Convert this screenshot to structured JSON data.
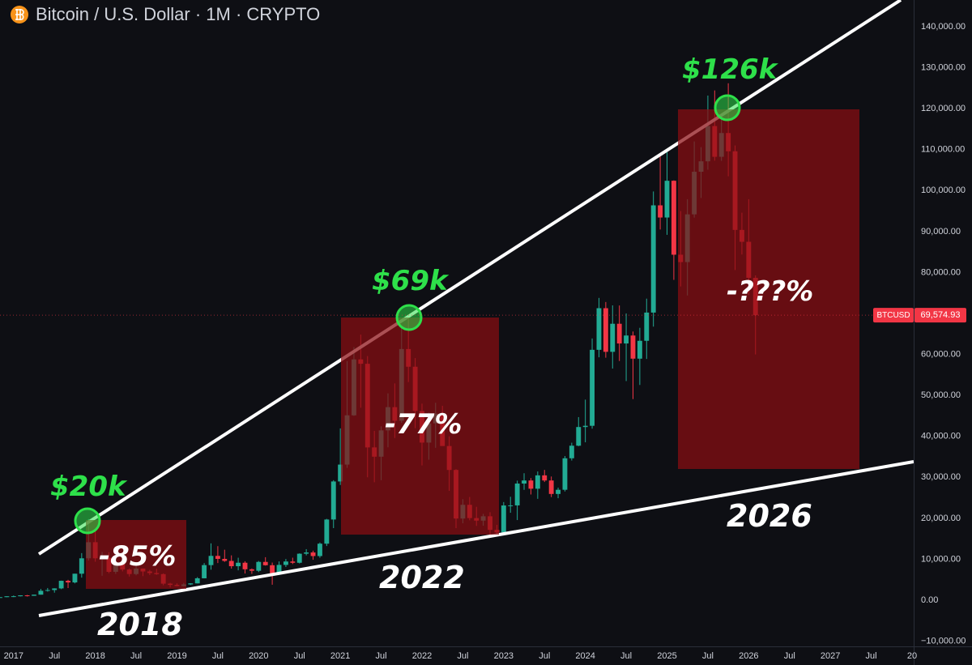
{
  "chart_data": {
    "type": "candlestick",
    "title": "Bitcoin / U.S. Dollar · 1M · CRYPTO",
    "symbol": "BTCUSD",
    "last_price_label": "69,574.93",
    "up_color": "#22ab94",
    "down_color": "#f23645",
    "x": [
      "2016-11",
      "2016-12",
      "2017-01",
      "2017-02",
      "2017-03",
      "2017-04",
      "2017-05",
      "2017-06",
      "2017-07",
      "2017-08",
      "2017-09",
      "2017-10",
      "2017-11",
      "2017-12",
      "2018-01",
      "2018-02",
      "2018-03",
      "2018-04",
      "2018-05",
      "2018-06",
      "2018-07",
      "2018-08",
      "2018-09",
      "2018-10",
      "2018-11",
      "2018-12",
      "2019-01",
      "2019-02",
      "2019-03",
      "2019-04",
      "2019-05",
      "2019-06",
      "2019-07",
      "2019-08",
      "2019-09",
      "2019-10",
      "2019-11",
      "2019-12",
      "2020-01",
      "2020-02",
      "2020-03",
      "2020-04",
      "2020-05",
      "2020-06",
      "2020-07",
      "2020-08",
      "2020-09",
      "2020-10",
      "2020-11",
      "2020-12",
      "2021-01",
      "2021-02",
      "2021-03",
      "2021-04",
      "2021-05",
      "2021-06",
      "2021-07",
      "2021-08",
      "2021-09",
      "2021-10",
      "2021-11",
      "2021-12",
      "2022-01",
      "2022-02",
      "2022-03",
      "2022-04",
      "2022-05",
      "2022-06",
      "2022-07",
      "2022-08",
      "2022-09",
      "2022-10",
      "2022-11",
      "2022-12",
      "2023-01",
      "2023-02",
      "2023-03",
      "2023-04",
      "2023-05",
      "2023-06",
      "2023-07",
      "2023-08",
      "2023-09",
      "2023-10",
      "2023-11",
      "2023-12",
      "2024-01",
      "2024-02",
      "2024-03",
      "2024-04",
      "2024-05",
      "2024-06",
      "2024-07",
      "2024-08",
      "2024-09",
      "2024-10",
      "2024-11",
      "2024-12",
      "2025-01",
      "2025-02",
      "2025-03",
      "2025-04",
      "2025-05",
      "2025-06",
      "2025-07",
      "2025-08",
      "2025-09",
      "2025-10",
      "2025-11",
      "2025-12",
      "2026-01",
      "2026-02"
    ],
    "open": [
      700,
      745,
      963,
      970,
      1190,
      1080,
      1350,
      2300,
      2480,
      2880,
      4740,
      4340,
      6470,
      10230,
      14160,
      10220,
      10330,
      6930,
      9240,
      7490,
      6390,
      7730,
      7020,
      6630,
      6370,
      4040,
      3740,
      3460,
      3850,
      4110,
      5350,
      8570,
      10820,
      10090,
      9590,
      8300,
      9150,
      7550,
      7190,
      9350,
      8540,
      6410,
      8620,
      9450,
      9140,
      11350,
      11660,
      10780,
      13800,
      19700,
      28990,
      33110,
      45140,
      58790,
      57720,
      37300,
      35040,
      41460,
      47130,
      43820,
      61320,
      57000,
      46200,
      38480,
      43190,
      45540,
      37640,
      31800,
      19940,
      23290,
      20050,
      19430,
      20490,
      17170,
      16540,
      23130,
      23150,
      28480,
      29230,
      27220,
      30480,
      29230,
      25940,
      26960,
      34650,
      37720,
      42280,
      42580,
      61130,
      71290,
      60640,
      67490,
      62680,
      64620,
      58970,
      63330,
      70220,
      96400,
      93430,
      102400,
      84350,
      82550,
      94200,
      104600,
      107150,
      115760,
      108250,
      114050,
      109600,
      90400,
      87500,
      78700
    ],
    "high": [
      750,
      980,
      1150,
      1200,
      1290,
      1350,
      2760,
      2980,
      2920,
      4780,
      4980,
      6470,
      11500,
      19800,
      17250,
      11790,
      11700,
      9760,
      9990,
      7760,
      8500,
      7760,
      7410,
      7680,
      6550,
      4240,
      4110,
      4210,
      4150,
      5640,
      9070,
      13880,
      13200,
      12330,
      10950,
      10370,
      9510,
      7740,
      9580,
      10500,
      9190,
      9470,
      10070,
      10380,
      11440,
      12470,
      12090,
      14100,
      19860,
      29300,
      41950,
      58350,
      61790,
      64850,
      59600,
      41330,
      42450,
      50500,
      52920,
      67000,
      69000,
      59100,
      47990,
      45800,
      48200,
      47450,
      40000,
      31990,
      24670,
      25200,
      22800,
      21080,
      21480,
      18400,
      23960,
      25250,
      29190,
      31000,
      29820,
      31430,
      31810,
      30200,
      27480,
      35200,
      38450,
      44700,
      48970,
      63900,
      73800,
      72800,
      71980,
      71950,
      70020,
      65600,
      66500,
      73620,
      99800,
      108300,
      109600,
      102500,
      95000,
      97900,
      112000,
      110600,
      123200,
      124450,
      117900,
      126200,
      111000,
      94600,
      97900,
      79300
    ],
    "low": [
      690,
      745,
      750,
      920,
      890,
      1060,
      1350,
      2100,
      1840,
      2700,
      2970,
      4110,
      5510,
      9700,
      9400,
      5970,
      6600,
      6430,
      7040,
      5780,
      6070,
      5880,
      6140,
      6200,
      3650,
      3120,
      3400,
      3390,
      3720,
      4100,
      5330,
      7450,
      9070,
      9360,
      7710,
      7300,
      6520,
      6430,
      6870,
      8440,
      3780,
      6150,
      8120,
      8830,
      8970,
      10950,
      9880,
      10370,
      13230,
      17600,
      28130,
      32300,
      45000,
      47000,
      30000,
      28800,
      29300,
      37330,
      39600,
      43300,
      53260,
      42000,
      32900,
      34300,
      37200,
      37700,
      26700,
      17600,
      18780,
      19520,
      18150,
      18190,
      15480,
      16260,
      16500,
      21350,
      19570,
      26940,
      25810,
      24750,
      28860,
      25170,
      24900,
      26550,
      34100,
      37600,
      38550,
      41880,
      59300,
      59200,
      56550,
      58400,
      53500,
      49100,
      52550,
      58900,
      66800,
      90500,
      89200,
      78200,
      76600,
      74400,
      93400,
      98200,
      105100,
      107300,
      107250,
      103500,
      80600,
      84400,
      74500,
      60000
    ],
    "close": [
      745,
      963,
      970,
      1190,
      1080,
      1350,
      2300,
      2480,
      2880,
      4740,
      4340,
      6470,
      10230,
      14160,
      10220,
      10330,
      6930,
      9240,
      7490,
      6390,
      7730,
      7020,
      6630,
      6370,
      4040,
      3740,
      3460,
      3850,
      4110,
      5350,
      8570,
      10820,
      10090,
      9590,
      8300,
      9150,
      7550,
      7190,
      9350,
      8540,
      6410,
      8620,
      9450,
      9140,
      11350,
      11660,
      10780,
      13800,
      19700,
      28990,
      33110,
      45140,
      58790,
      57720,
      37300,
      35040,
      41460,
      47130,
      43820,
      61320,
      57000,
      46200,
      38480,
      43190,
      45540,
      37640,
      31800,
      19940,
      23290,
      20050,
      19430,
      20490,
      17170,
      16540,
      23130,
      23150,
      28480,
      29230,
      27220,
      30480,
      29230,
      25940,
      26960,
      34650,
      37720,
      42280,
      42580,
      61130,
      71290,
      60640,
      67490,
      62680,
      64620,
      58970,
      63330,
      70220,
      96400,
      93430,
      102400,
      84350,
      82550,
      94200,
      104600,
      107150,
      115760,
      108250,
      114050,
      109600,
      90400,
      87500,
      78700,
      69574.93
    ],
    "xlim": [
      "2016-11",
      "2028-01"
    ],
    "xticks": [
      {
        "value": "2017-01",
        "label": "2017"
      },
      {
        "value": "2017-07",
        "label": "Jul"
      },
      {
        "value": "2018-01",
        "label": "2018"
      },
      {
        "value": "2018-07",
        "label": "Jul"
      },
      {
        "value": "2019-01",
        "label": "2019"
      },
      {
        "value": "2019-07",
        "label": "Jul"
      },
      {
        "value": "2020-01",
        "label": "2020"
      },
      {
        "value": "2020-07",
        "label": "Jul"
      },
      {
        "value": "2021-01",
        "label": "2021"
      },
      {
        "value": "2021-07",
        "label": "Jul"
      },
      {
        "value": "2022-01",
        "label": "2022"
      },
      {
        "value": "2022-07",
        "label": "Jul"
      },
      {
        "value": "2023-01",
        "label": "2023"
      },
      {
        "value": "2023-07",
        "label": "Jul"
      },
      {
        "value": "2024-01",
        "label": "2024"
      },
      {
        "value": "2024-07",
        "label": "Jul"
      },
      {
        "value": "2025-01",
        "label": "2025"
      },
      {
        "value": "2025-07",
        "label": "Jul"
      },
      {
        "value": "2026-01",
        "label": "2026"
      },
      {
        "value": "2026-07",
        "label": "Jul"
      },
      {
        "value": "2027-01",
        "label": "2027"
      },
      {
        "value": "2027-07",
        "label": "Jul"
      },
      {
        "value": "2028-01",
        "label": "20"
      }
    ],
    "ylim": [
      -11270,
      146530
    ],
    "yticks": [
      {
        "value": -10000,
        "label": "−10,000.00"
      },
      {
        "value": 0,
        "label": "0.00"
      },
      {
        "value": 10000,
        "label": "10,000.00"
      },
      {
        "value": 20000,
        "label": "20,000.00"
      },
      {
        "value": 30000,
        "label": "30,000.00"
      },
      {
        "value": 40000,
        "label": "40,000.00"
      },
      {
        "value": 50000,
        "label": "50,000.00"
      },
      {
        "value": 60000,
        "label": "60,000.00"
      },
      {
        "value": 70000,
        "label": "70,000.00"
      },
      {
        "value": 80000,
        "label": "80,000.00"
      },
      {
        "value": 90000,
        "label": "90,000.00"
      },
      {
        "value": 100000,
        "label": "100,000.00"
      },
      {
        "value": 110000,
        "label": "110,000.00"
      },
      {
        "value": 120000,
        "label": "120,000.00"
      },
      {
        "value": 130000,
        "label": "130,000.00"
      },
      {
        "value": 140000,
        "label": "140,000.00"
      }
    ],
    "annotations": {
      "peaks": [
        "$20k",
        "$69k",
        "$126k"
      ],
      "drawdowns": [
        "-85%",
        "-77%",
        "-???%"
      ],
      "cycle_years": [
        "2018",
        "2022",
        "2026"
      ]
    }
  }
}
